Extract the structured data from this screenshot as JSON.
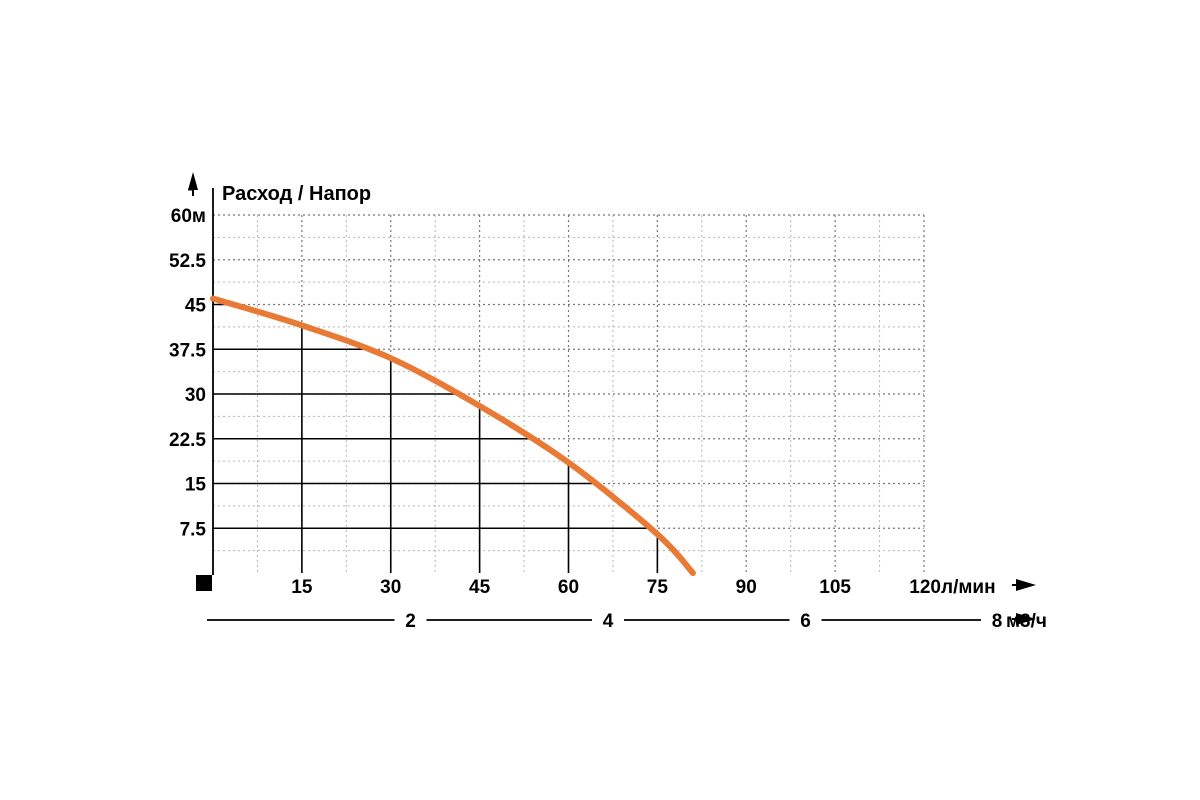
{
  "chart_data": {
    "type": "line",
    "title": "Расход / Напор",
    "ylabel": "Напор",
    "ylim": [
      0,
      60
    ],
    "yticks": [
      "7.5",
      "15",
      "22.5",
      "30",
      "37.5",
      "45",
      "52.5",
      "60м"
    ],
    "yticks_values": [
      7.5,
      15,
      22.5,
      30,
      37.5,
      45,
      52.5,
      60
    ],
    "xlim": [
      0,
      120
    ],
    "xticks": [
      "15",
      "30",
      "45",
      "60",
      "75",
      "90",
      "105",
      "120"
    ],
    "xticks_values": [
      15,
      30,
      45,
      60,
      75,
      90,
      105,
      120
    ],
    "xunit": "л/мин",
    "x2_ticks": [
      "2",
      "4",
      "6",
      "8"
    ],
    "x2_ticks_values": [
      2,
      4,
      6,
      8
    ],
    "x2_unit": "м3/ч",
    "grid": true,
    "curve_color": "#e87a35",
    "series": [
      {
        "x": [
          0,
          15,
          30,
          45,
          60,
          75,
          81
        ],
        "y": [
          46,
          41.5,
          36,
          28,
          18.5,
          6.5,
          0
        ]
      }
    ],
    "reference_lines": [
      {
        "x": 15,
        "y": 41.5
      },
      {
        "x": 30,
        "y": 36
      },
      {
        "x": 45,
        "y": 28
      },
      {
        "x": 60,
        "y": 18.5
      },
      {
        "x": 75,
        "y": 6.5
      }
    ]
  }
}
